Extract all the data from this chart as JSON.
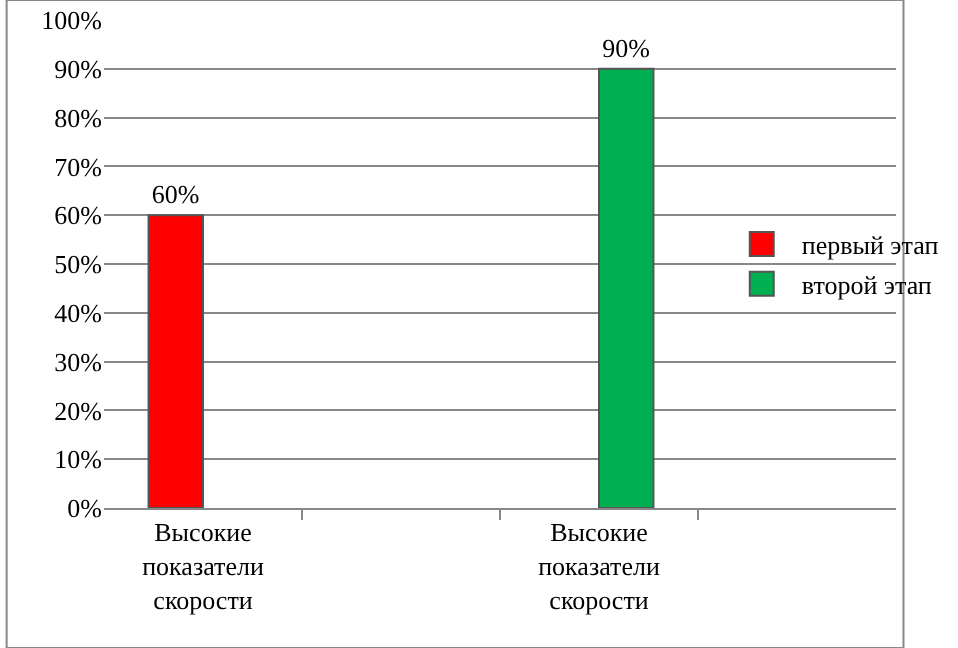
{
  "chart_data": {
    "type": "bar",
    "categories": [
      "Высокие показатели скорости",
      null,
      "Высокие показатели скорости",
      null
    ],
    "series": [
      {
        "name": "первый этап",
        "color": "#ff0000",
        "values": [
          60,
          null,
          null,
          null
        ],
        "value_labels": [
          "60%",
          null,
          null,
          null
        ]
      },
      {
        "name": "второй этап",
        "color": "#00b050",
        "values": [
          null,
          null,
          90,
          null
        ],
        "value_labels": [
          null,
          null,
          "90%",
          null
        ]
      }
    ],
    "ylim": [
      0,
      100
    ],
    "yticks": [
      {
        "value": 0,
        "label": "0%"
      },
      {
        "value": 10,
        "label": "10%"
      },
      {
        "value": 20,
        "label": "20%"
      },
      {
        "value": 30,
        "label": "30%"
      },
      {
        "value": 40,
        "label": "40%"
      },
      {
        "value": 50,
        "label": "50%"
      },
      {
        "value": 60,
        "label": "60%"
      },
      {
        "value": 70,
        "label": "70%"
      },
      {
        "value": 80,
        "label": "80%"
      },
      {
        "value": 90,
        "label": "90%"
      },
      {
        "value": 100,
        "label": "100%"
      }
    ],
    "grid": "y",
    "legend": "right"
  }
}
